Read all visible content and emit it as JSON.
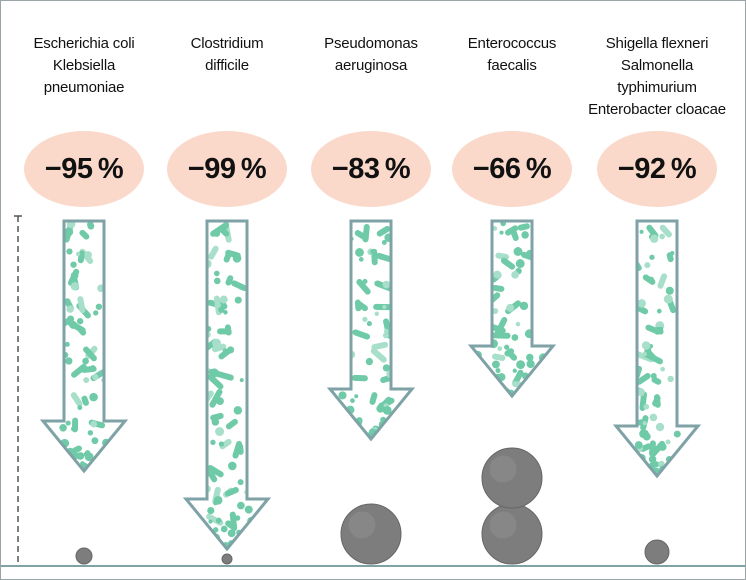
{
  "columns": [
    {
      "id": "c1",
      "labels": [
        "Escherichia coli",
        "Klebsiella",
        "pneumoniae"
      ],
      "reduction": "−95 %",
      "tip": 470,
      "balls": [
        {
          "r": 8
        }
      ]
    },
    {
      "id": "c2",
      "labels": [
        "Clostridium",
        "difficile"
      ],
      "reduction": "−99 %",
      "tip": 548,
      "balls": [
        {
          "r": 5
        }
      ]
    },
    {
      "id": "c3",
      "labels": [
        "Pseudomonas",
        "aeruginosa"
      ],
      "reduction": "−83 %",
      "tip": 438,
      "balls": [
        {
          "r": 30
        }
      ]
    },
    {
      "id": "c4",
      "labels": [
        "Enterococcus",
        "faecalis"
      ],
      "reduction": "−66 %",
      "tip": 395,
      "balls": [
        {
          "r": 30
        },
        {
          "r": 30
        }
      ]
    },
    {
      "id": "c5",
      "labels": [
        "Shigella flexneri",
        "Salmonella typhimurium",
        "Enterobacter cloacae"
      ],
      "reduction": "−92 %",
      "tip": 475,
      "balls": [
        {
          "r": 12
        }
      ]
    }
  ],
  "colors": {
    "arrow_outline": "#7fa2a6",
    "bacteria": "#6fcaa8",
    "bacteria_light": "#a8dfca",
    "badge": "#fad9cb",
    "ball": "#7d7d7d"
  }
}
